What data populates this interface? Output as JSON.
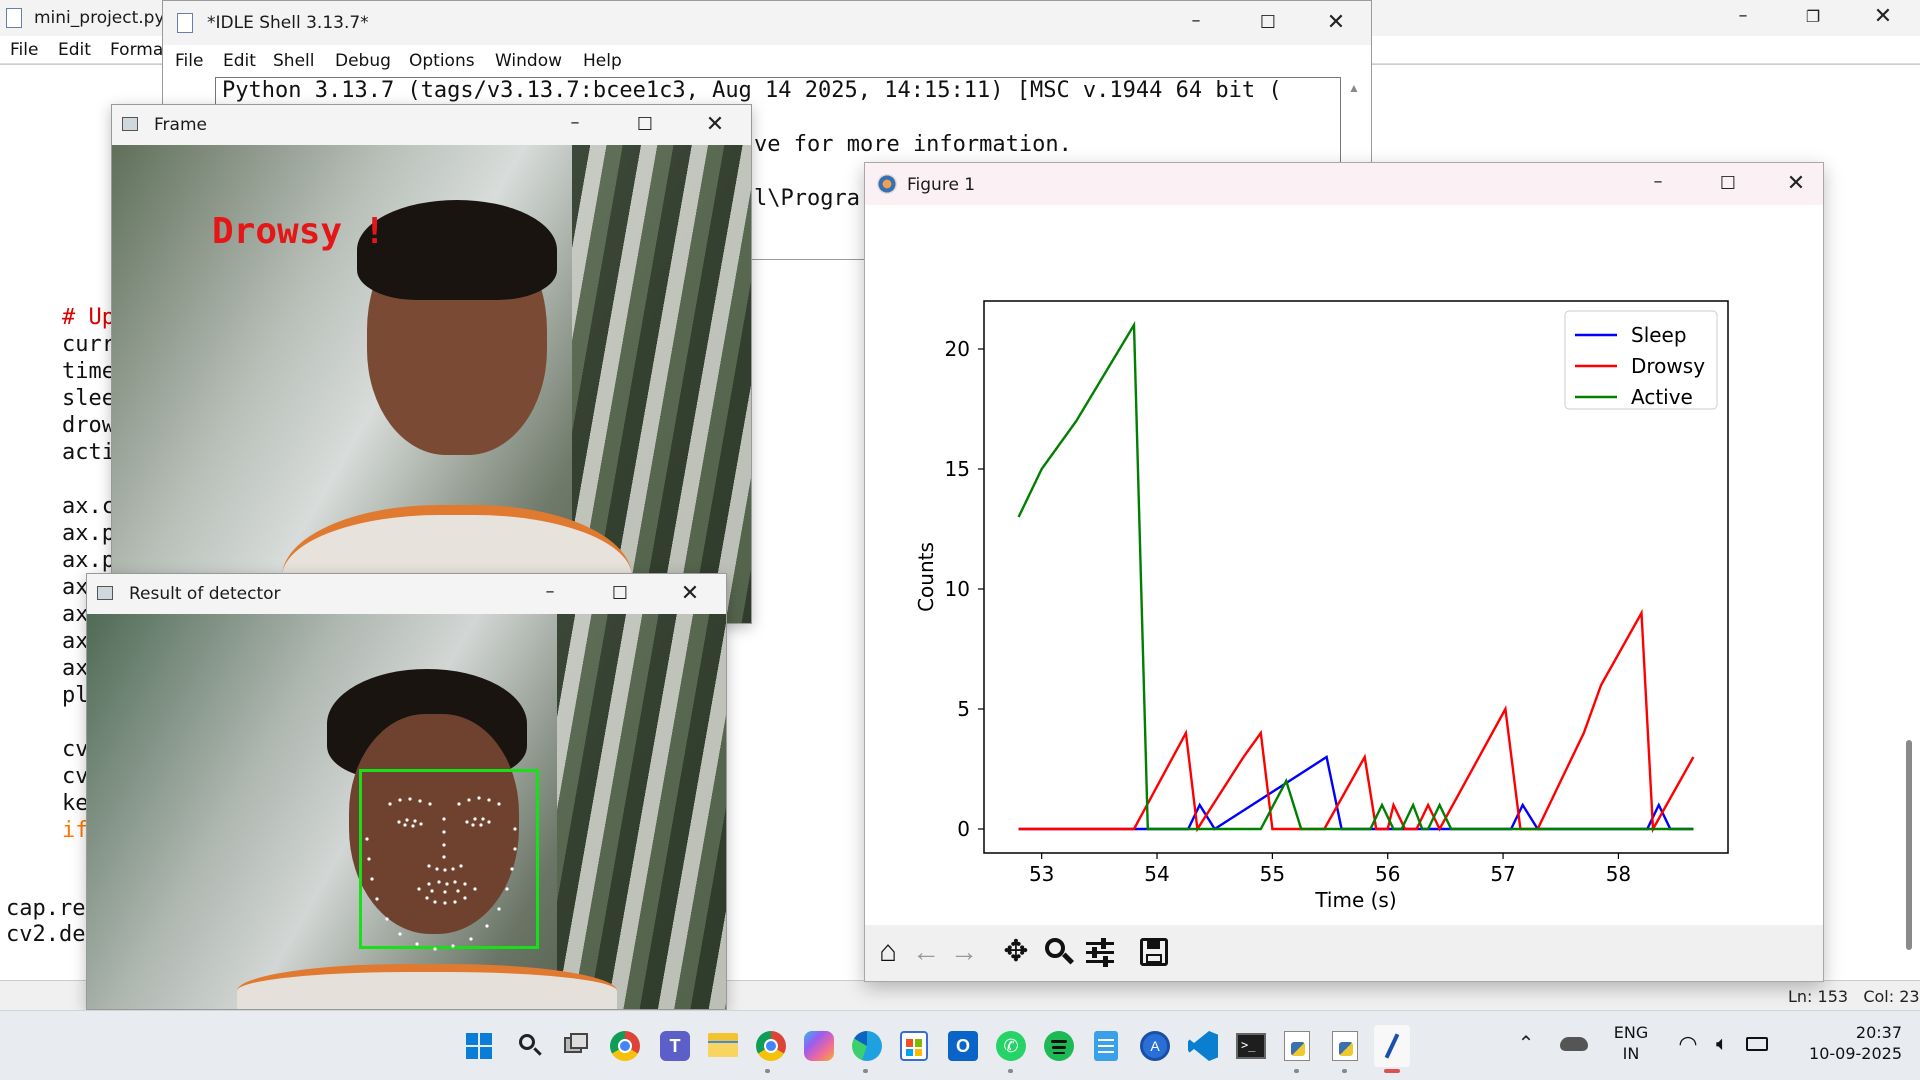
{
  "editor": {
    "title": "mini_project.py",
    "menu": [
      "File",
      "Edit",
      "Forma"
    ],
    "lines": [
      {
        "text": "# Up",
        "color": "#dd0000"
      },
      {
        "text": "curr",
        "color": "#111111"
      },
      {
        "text": "time",
        "color": "#111111"
      },
      {
        "text": "slee",
        "color": "#111111"
      },
      {
        "text": "drow",
        "color": "#111111"
      },
      {
        "text": "acti",
        "color": "#111111"
      },
      {
        "text": "",
        "color": "#111111"
      },
      {
        "text": "ax.c",
        "color": "#111111"
      },
      {
        "text": "ax.p",
        "color": "#111111"
      },
      {
        "text": "ax.p",
        "color": "#111111"
      },
      {
        "text": "ax",
        "color": "#111111"
      },
      {
        "text": "ax",
        "color": "#111111"
      },
      {
        "text": "ax",
        "color": "#111111"
      },
      {
        "text": "ax",
        "color": "#111111"
      },
      {
        "text": "pl",
        "color": "#111111"
      },
      {
        "text": "",
        "color": "#111111"
      },
      {
        "text": "cv",
        "color": "#111111"
      },
      {
        "text": "cv",
        "color": "#111111"
      },
      {
        "text": "ke",
        "color": "#111111"
      },
      {
        "text": "if",
        "color": "#ff7700"
      }
    ],
    "bottom_lines": [
      "cap.re",
      "cv2.de"
    ],
    "status": "Ln: 153   Col: 23"
  },
  "shell": {
    "title": "*IDLE Shell 3.13.7*",
    "menu": [
      "File",
      "Edit",
      "Shell",
      "Debug",
      "Options",
      "Window",
      "Help"
    ],
    "line1": "Python 3.13.7 (tags/v3.13.7:bcee1c3, Aug 14 2025, 14:15:11) [MSC v.1944 64 bit (",
    "line2": "ve for more information.",
    "line3": "l\\Progra"
  },
  "frame_window": {
    "title": "Frame",
    "overlay_text": "Drowsy !"
  },
  "detector_window": {
    "title": "Result of detector"
  },
  "figure": {
    "title": "Figure 1",
    "toolbar": [
      "home-icon",
      "back-icon",
      "forward-icon",
      "pan-icon",
      "zoom-icon",
      "configure-icon",
      "save-icon"
    ]
  },
  "chart_data": {
    "type": "line",
    "xlabel": "Time (s)",
    "ylabel": "Counts",
    "xlim": [
      52.5,
      58.95
    ],
    "ylim": [
      -1,
      22
    ],
    "xticks": [
      53,
      54,
      55,
      56,
      57,
      58
    ],
    "yticks": [
      0,
      5,
      10,
      15,
      20
    ],
    "grid": false,
    "legend_position": "top-right",
    "series": [
      {
        "name": "Sleep",
        "color": "#0000ff",
        "x": [
          52.8,
          54.27,
          54.37,
          54.5,
          55.47,
          55.6,
          57.07,
          57.17,
          57.3,
          58.25,
          58.35,
          58.45,
          58.65
        ],
        "y": [
          0,
          0,
          1,
          0,
          3,
          0,
          0,
          1,
          0,
          0,
          1,
          0,
          0
        ]
      },
      {
        "name": "Drowsy",
        "color": "#ff0000",
        "x": [
          52.8,
          53.8,
          54.25,
          54.35,
          54.75,
          54.9,
          55.0,
          55.45,
          55.8,
          55.9,
          56.0,
          56.05,
          56.15,
          56.25,
          56.35,
          56.45,
          57.02,
          57.15,
          57.3,
          57.5,
          57.7,
          57.85,
          58.2,
          58.3,
          58.65
        ],
        "y": [
          0,
          0,
          4,
          0,
          3,
          4,
          0,
          0,
          3,
          0,
          0,
          1,
          0,
          0,
          1,
          0,
          5,
          0,
          0,
          2,
          4,
          6,
          9,
          0,
          3
        ]
      },
      {
        "name": "Active",
        "color": "#008000",
        "x": [
          52.8,
          53.0,
          53.3,
          53.8,
          53.92,
          54.9,
          55.12,
          55.25,
          55.85,
          55.95,
          56.05,
          56.12,
          56.22,
          56.3,
          56.35,
          56.45,
          56.55,
          58.65
        ],
        "y": [
          13,
          15,
          17,
          21,
          0,
          0,
          2,
          0,
          0,
          1,
          0,
          0,
          1,
          0,
          0,
          1,
          0,
          0
        ]
      }
    ]
  },
  "taskbar": {
    "lang1": "ENG",
    "lang2": "IN",
    "time": "20:37",
    "date": "10-09-2025"
  }
}
